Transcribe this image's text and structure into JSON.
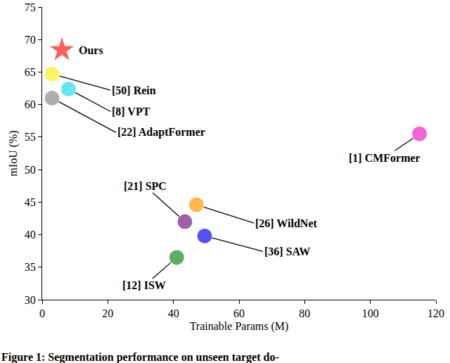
{
  "chart_data": {
    "type": "scatter",
    "x_label": "Trainable Params (M)",
    "y_label": "mIoU (%)",
    "caption": "Figure 1: Segmentation performance on unseen target do-",
    "x": [
      6,
      3,
      8,
      3,
      115,
      43.5,
      47,
      49.5,
      41
    ],
    "values": [
      68.4,
      64.7,
      62.4,
      61,
      55.5,
      42,
      44.6,
      39.8,
      36.5
    ],
    "labels": [
      "Ours",
      "[50] Rein",
      "[8] VPT",
      "[22] AdaptFormer",
      "[1] CMFormer",
      "[21] SPC",
      "[26] WildNet",
      "[36] SAW",
      "[12] ISW"
    ],
    "colors": [
      "#ff1a1a",
      "#ffee22",
      "#22ddee",
      "#8c8c8c",
      "#ee22cc",
      "#7a1a8a",
      "#ff9a00",
      "#0a0aee",
      "#1a8a1a"
    ],
    "markers": [
      "star",
      "circle",
      "circle",
      "circle",
      "circle",
      "circle",
      "circle",
      "circle",
      "circle"
    ],
    "xlim": [
      0,
      120
    ],
    "xticks": [
      0,
      20,
      40,
      60,
      80,
      100,
      120
    ],
    "ylim": [
      30,
      75
    ],
    "yticks": [
      30,
      35,
      40,
      45,
      50,
      55,
      60,
      65,
      70,
      75
    ],
    "grid": false
  }
}
